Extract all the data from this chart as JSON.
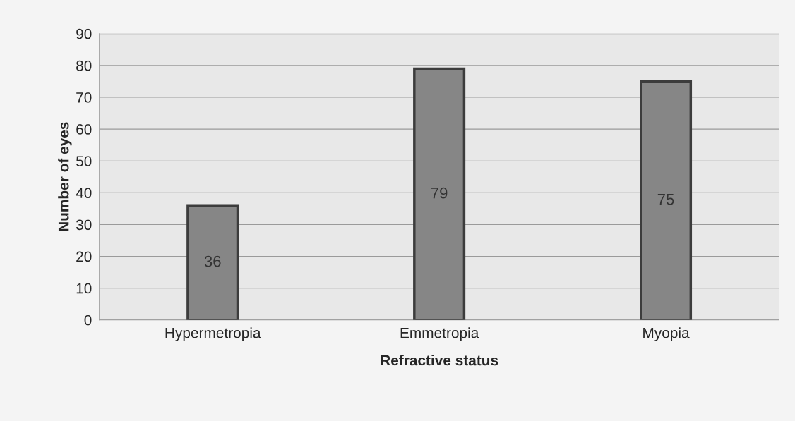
{
  "chart_data": {
    "type": "bar",
    "xlabel": "Refractive status",
    "ylabel": "Number of eyes",
    "categories": [
      "Hypermetropia",
      "Emmetropia",
      "Myopia"
    ],
    "values": [
      36,
      79,
      75
    ],
    "color": "#868686",
    "ylim": [
      0,
      90
    ],
    "yticks": [
      0,
      10,
      20,
      30,
      40,
      50,
      60,
      70,
      80,
      90
    ],
    "grid": "y",
    "data_labels": true
  }
}
